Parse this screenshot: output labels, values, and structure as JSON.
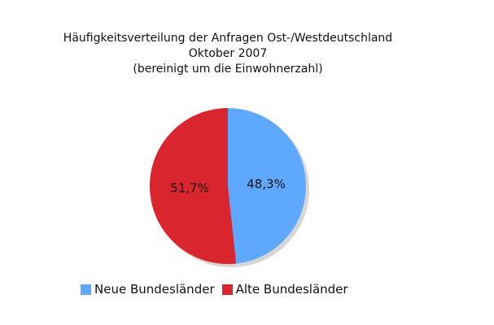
{
  "chart_data": {
    "type": "pie",
    "title_lines": [
      "Häufigkeitsverteilung der Anfragen Ost-/Westdeutschland",
      "Oktober 2007",
      "(bereinigt um die Einwohnerzahl)"
    ],
    "slices": [
      {
        "name": "Neue Bundesländer",
        "value": 48.3,
        "label": "48,3%",
        "color": "#5fa8ff"
      },
      {
        "name": "Alte Bundesländer",
        "value": 51.7,
        "label": "51,7%",
        "color": "#d9262e"
      }
    ],
    "legend_position": "bottom",
    "shadow_color": "#b5b5b5"
  }
}
